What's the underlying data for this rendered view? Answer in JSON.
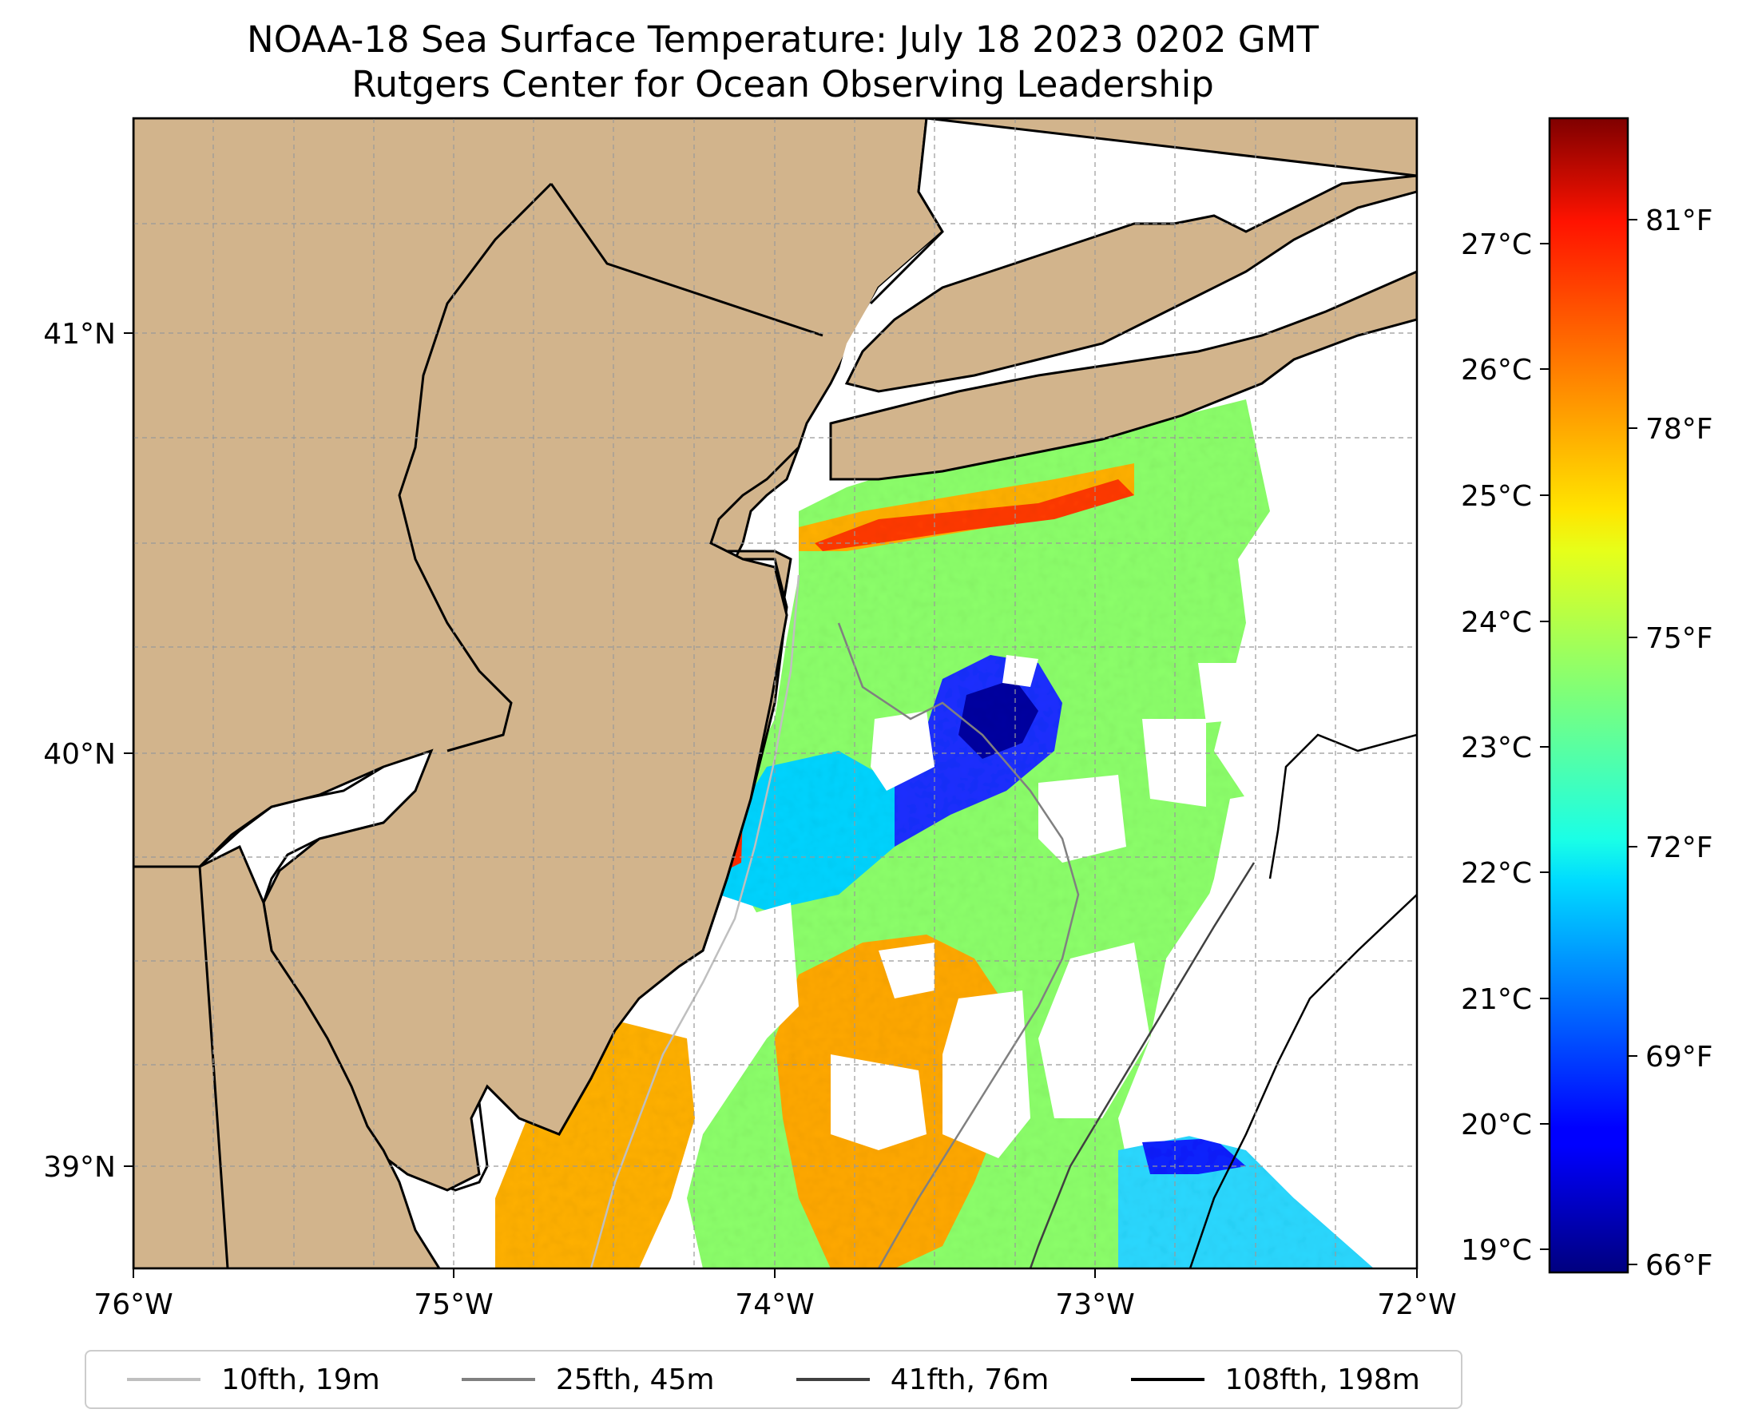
{
  "title": {
    "line1": "NOAA-18 Sea Surface Temperature: July 18 2023 0202 GMT",
    "line2": "Rutgers Center for Ocean Observing Leadership"
  },
  "map": {
    "lon_range": [
      -76,
      -72
    ],
    "lat_range": [
      38.75,
      41.5
    ],
    "lon_ticks": [
      "76°W",
      "75°W",
      "74°W",
      "73°W",
      "72°W"
    ],
    "lat_ticks": [
      "41°N",
      "40°N",
      "39°N"
    ],
    "land_color": "#d2b48c",
    "grid": true
  },
  "colorbar": {
    "colormap": "jet",
    "celsius_ticks": [
      "27°C",
      "26°C",
      "25°C",
      "24°C",
      "23°C",
      "22°C",
      "21°C",
      "20°C",
      "19°C"
    ],
    "fahrenheit_ticks": [
      "81°F",
      "78°F",
      "75°F",
      "72°F",
      "69°F",
      "66°F"
    ],
    "range_f": [
      65.8,
      82.4
    ]
  },
  "legend": {
    "items": [
      {
        "label": "10fth, 19m",
        "color": "#bfbfbf"
      },
      {
        "label": "25fth, 45m",
        "color": "#808080"
      },
      {
        "label": "41fth, 76m",
        "color": "#404040"
      },
      {
        "label": "108fth, 198m",
        "color": "#000000"
      }
    ]
  },
  "chart_data": {
    "type": "heatmap",
    "title": "NOAA-18 Sea Surface Temperature: July 18 2023 0202 GMT",
    "subtitle": "Rutgers Center for Ocean Observing Leadership",
    "xlim": [
      -76,
      -72
    ],
    "ylim": [
      38.75,
      41.5
    ],
    "zlim_f": [
      65.8,
      82.4
    ],
    "colormap": "jet",
    "legend_placement": "bottom"
  }
}
